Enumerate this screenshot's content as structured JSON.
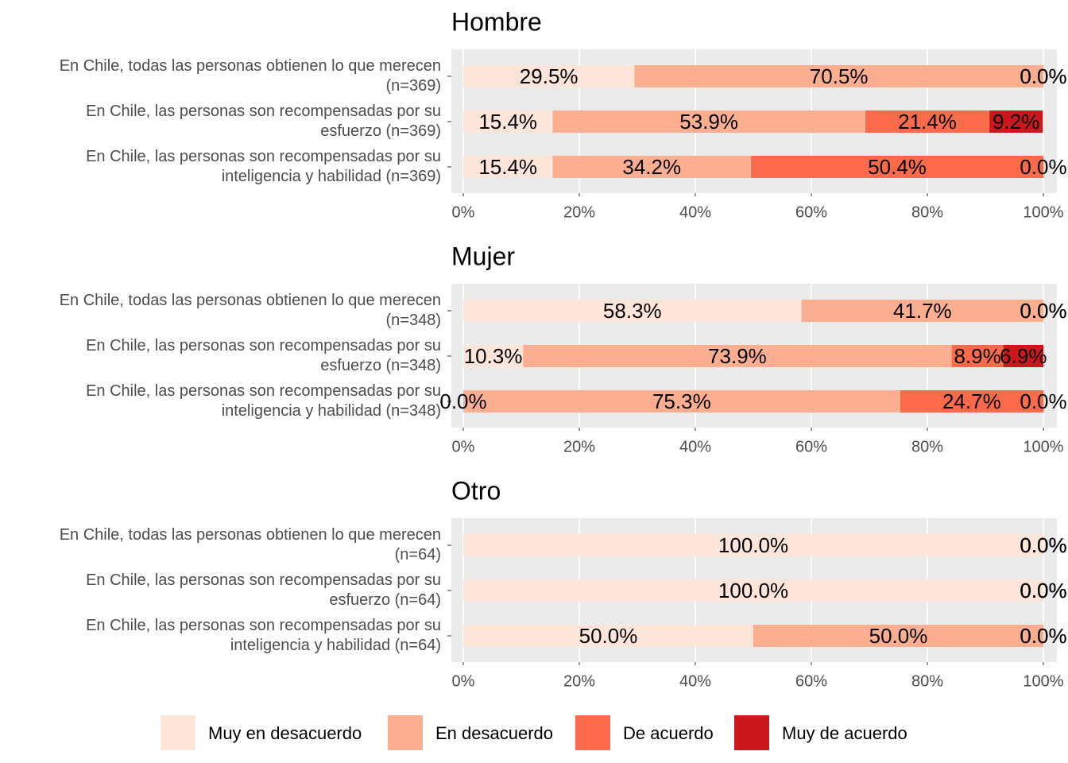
{
  "chart_data": [
    {
      "type": "bar",
      "orientation": "horizontal",
      "stacked": true,
      "title": "Hombre",
      "categories": [
        "En Chile, todas las personas obtienen lo que merecen\n(n=369)",
        "En Chile, las personas son recompensadas por su\nesfuerzo (n=369)",
        "En Chile, las personas son recompensadas por su\ninteligencia y habilidad (n=369)"
      ],
      "series": [
        {
          "name": "Muy en desacuerdo",
          "color": "#fee5d9",
          "values": [
            29.5,
            15.4,
            15.4
          ],
          "value_labels": [
            "29.5%",
            "15.4%",
            "15.4%"
          ]
        },
        {
          "name": "En desacuerdo",
          "color": "#fcae91",
          "values": [
            70.5,
            53.9,
            34.2
          ],
          "value_labels": [
            "70.5%",
            "53.9%",
            "34.2%"
          ]
        },
        {
          "name": "De acuerdo",
          "color": "#fb6a4a",
          "values": [
            0.0,
            21.4,
            50.4
          ],
          "value_labels": [
            "0.0%",
            "21.4%",
            "50.4%"
          ]
        },
        {
          "name": "Muy de acuerdo",
          "color": "#cb181d",
          "values": [
            0.0,
            9.2,
            0.0
          ],
          "value_labels": [
            "0.0%",
            "9.2%",
            "0.0%"
          ]
        }
      ],
      "xlim": [
        0,
        100
      ],
      "xticks": [
        {
          "value": 0,
          "label": "0%"
        },
        {
          "value": 20,
          "label": "20%"
        },
        {
          "value": 40,
          "label": "40%"
        },
        {
          "value": 60,
          "label": "60%"
        },
        {
          "value": 80,
          "label": "80%"
        },
        {
          "value": 100,
          "label": "100%"
        }
      ],
      "grid": true,
      "legend": "bottom"
    },
    {
      "type": "bar",
      "orientation": "horizontal",
      "stacked": true,
      "title": "Mujer",
      "categories": [
        "En Chile, todas las personas obtienen lo que merecen\n(n=348)",
        "En Chile, las personas son recompensadas por su\nesfuerzo (n=348)",
        "En Chile, las personas son recompensadas por su\ninteligencia y habilidad (n=348)"
      ],
      "series": [
        {
          "name": "Muy en desacuerdo",
          "color": "#fee5d9",
          "values": [
            58.3,
            10.3,
            0.0
          ],
          "value_labels": [
            "58.3%",
            "10.3%",
            "0.0%"
          ]
        },
        {
          "name": "En desacuerdo",
          "color": "#fcae91",
          "values": [
            41.7,
            73.9,
            75.3
          ],
          "value_labels": [
            "41.7%",
            "73.9%",
            "75.3%"
          ]
        },
        {
          "name": "De acuerdo",
          "color": "#fb6a4a",
          "values": [
            0.0,
            8.9,
            24.7
          ],
          "value_labels": [
            "0.0%",
            "8.9%",
            "24.7%"
          ]
        },
        {
          "name": "Muy de acuerdo",
          "color": "#cb181d",
          "values": [
            0.0,
            6.9,
            0.0
          ],
          "value_labels": [
            "0.0%",
            "6.9%",
            "0.0%"
          ]
        }
      ],
      "xlim": [
        0,
        100
      ],
      "xticks": [
        {
          "value": 0,
          "label": "0%"
        },
        {
          "value": 20,
          "label": "20%"
        },
        {
          "value": 40,
          "label": "40%"
        },
        {
          "value": 60,
          "label": "60%"
        },
        {
          "value": 80,
          "label": "80%"
        },
        {
          "value": 100,
          "label": "100%"
        }
      ],
      "grid": true
    },
    {
      "type": "bar",
      "orientation": "horizontal",
      "stacked": true,
      "title": "Otro",
      "categories": [
        "En Chile, todas las personas obtienen lo que merecen\n(n=64)",
        "En Chile, las personas son recompensadas por su\nesfuerzo (n=64)",
        "En Chile, las personas son recompensadas por su\ninteligencia y habilidad (n=64)"
      ],
      "series": [
        {
          "name": "Muy en desacuerdo",
          "color": "#fee5d9",
          "values": [
            100.0,
            100.0,
            50.0
          ],
          "value_labels": [
            "100.0%",
            "100.0%",
            "50.0%"
          ]
        },
        {
          "name": "En desacuerdo",
          "color": "#fcae91",
          "values": [
            0.0,
            0.0,
            50.0
          ],
          "value_labels": [
            "0.0%",
            "0.0%",
            "50.0%"
          ]
        },
        {
          "name": "De acuerdo",
          "color": "#fb6a4a",
          "values": [
            0.0,
            0.0,
            0.0
          ],
          "value_labels": [
            "0.0%",
            "0.0%",
            "0.0%"
          ]
        },
        {
          "name": "Muy de acuerdo",
          "color": "#cb181d",
          "values": [
            0.0,
            0.0,
            0.0
          ],
          "value_labels": [
            "0.0%",
            "0.0%",
            "0.0%"
          ]
        }
      ],
      "xlim": [
        0,
        100
      ],
      "xticks": [
        {
          "value": 0,
          "label": "0%"
        },
        {
          "value": 20,
          "label": "20%"
        },
        {
          "value": 40,
          "label": "40%"
        },
        {
          "value": 60,
          "label": "60%"
        },
        {
          "value": 80,
          "label": "80%"
        },
        {
          "value": 100,
          "label": "100%"
        }
      ],
      "grid": true
    }
  ]
}
